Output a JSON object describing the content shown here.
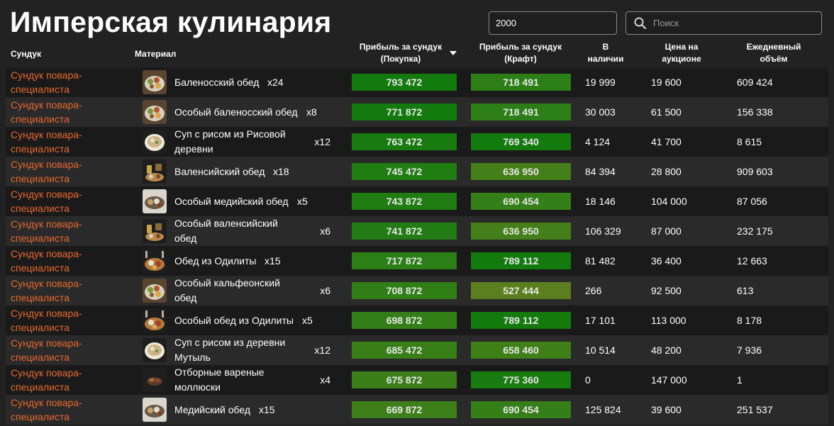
{
  "title": "Имперская кулинария",
  "quantity_input": {
    "value": "2000"
  },
  "search": {
    "placeholder": "Поиск",
    "icon": "search-icon"
  },
  "columns": {
    "chest": "Сундук",
    "material": "Материал",
    "profit_buy": "Прибыль за сундук (Покупка)",
    "profit_craft": "Прибыль за сундук (Крафт)",
    "stock": "В наличии",
    "price": "Цена на аукционе",
    "volume": "Ежедневный объём"
  },
  "sort": {
    "column": "profit_buy",
    "direction": "desc"
  },
  "colors": {
    "accent_text": "#e8692e",
    "bar_best": "#137a0e",
    "bar_good": "#2b7f16",
    "bar_mid": "#447f19",
    "bar_low": "#5b7f1e"
  },
  "rows": [
    {
      "chest": "Сундук повара-специалиста",
      "icon": "dinner-plate-icon",
      "material": "Баленосский обед",
      "count": "x24",
      "profit_buy": "793 472",
      "profit_craft": "718 491",
      "stock": "19 999",
      "price": "19 600",
      "volume": "609 424",
      "buy_color": "#137a0e",
      "craft_color": "#2b7f16"
    },
    {
      "chest": "Сундук повара-специалиста",
      "icon": "dinner-plate-icon",
      "material": "Особый баленосский обед",
      "count": "x8",
      "profit_buy": "771 872",
      "profit_craft": "718 491",
      "stock": "30 003",
      "price": "61 500",
      "volume": "156 338",
      "buy_color": "#137a0e",
      "craft_color": "#2b7f16"
    },
    {
      "chest": "Сундук повара-специалиста",
      "icon": "rice-soup-icon",
      "material": "Суп с рисом из Рисовой деревни",
      "count": "x12",
      "profit_buy": "763 472",
      "profit_craft": "769 340",
      "stock": "4 124",
      "price": "41 700",
      "volume": "8 615",
      "buy_color": "#187b10",
      "craft_color": "#137a0e"
    },
    {
      "chest": "Сундук повара-специалиста",
      "icon": "banquet-icon",
      "material": "Валенсийский обед",
      "count": "x18",
      "profit_buy": "745 472",
      "profit_craft": "636 950",
      "stock": "84 394",
      "price": "28 800",
      "volume": "909 603",
      "buy_color": "#1f7d12",
      "craft_color": "#447f19"
    },
    {
      "chest": "Сундук повара-специалиста",
      "icon": "meal-tray-icon",
      "material": "Особый медийский обед",
      "count": "x5",
      "profit_buy": "743 872",
      "profit_craft": "690 454",
      "stock": "18 146",
      "price": "104 000",
      "volume": "87 056",
      "buy_color": "#1f7d12",
      "craft_color": "#347f17"
    },
    {
      "chest": "Сундук повара-специалиста",
      "icon": "banquet-icon",
      "material": "Особый валенсийский обед",
      "count": "x6",
      "profit_buy": "741 872",
      "profit_craft": "636 950",
      "stock": "106 329",
      "price": "87 000",
      "volume": "232 175",
      "buy_color": "#217d13",
      "craft_color": "#447f19"
    },
    {
      "chest": "Сундук повара-специалиста",
      "icon": "feast-icon",
      "material": "Обед из Одилиты",
      "count": "x15",
      "profit_buy": "717 872",
      "profit_craft": "789 112",
      "stock": "81 482",
      "price": "36 400",
      "volume": "12 663",
      "buy_color": "#2b7f16",
      "craft_color": "#137a0e"
    },
    {
      "chest": "Сундук повара-специалиста",
      "icon": "dinner-plate-icon",
      "material": "Особый кальфеонский обед",
      "count": "x6",
      "profit_buy": "708 872",
      "profit_craft": "527 444",
      "stock": "266",
      "price": "92 500",
      "volume": "613",
      "buy_color": "#2f7f16",
      "craft_color": "#5b7f1e"
    },
    {
      "chest": "Сундук повара-специалиста",
      "icon": "feast-icon",
      "material": "Особый обед из Одилиты",
      "count": "x5",
      "profit_buy": "698 872",
      "profit_craft": "789 112",
      "stock": "17 101",
      "price": "113 000",
      "volume": "8 178",
      "buy_color": "#337f17",
      "craft_color": "#137a0e"
    },
    {
      "chest": "Сундук повара-специалиста",
      "icon": "rice-soup-icon",
      "material": "Суп с рисом из деревни Мутыль",
      "count": "x12",
      "profit_buy": "685 472",
      "profit_craft": "658 460",
      "stock": "10 514",
      "price": "48 200",
      "volume": "7 936",
      "buy_color": "#387f18",
      "craft_color": "#3e7f18"
    },
    {
      "chest": "Сундук повара-специалиста",
      "icon": "clams-icon",
      "material": "Отборные вареные моллюски",
      "count": "x4",
      "profit_buy": "675 872",
      "profit_craft": "775 360",
      "stock": "0",
      "price": "147 000",
      "volume": "1",
      "buy_color": "#3b7f18",
      "craft_color": "#177b10"
    },
    {
      "chest": "Сундук повара-специалиста",
      "icon": "meal-tray-icon",
      "material": "Медийский обед",
      "count": "x15",
      "profit_buy": "669 872",
      "profit_craft": "690 454",
      "stock": "125 824",
      "price": "39 600",
      "volume": "251 537",
      "buy_color": "#3d7f18",
      "craft_color": "#347f17"
    }
  ]
}
